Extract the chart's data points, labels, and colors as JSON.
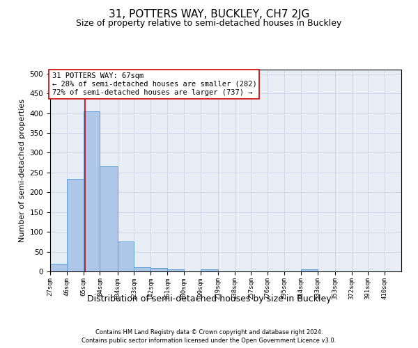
{
  "title": "31, POTTERS WAY, BUCKLEY, CH7 2JG",
  "subtitle": "Size of property relative to semi-detached houses in Buckley",
  "xlabel": "Distribution of semi-detached houses by size in Buckley",
  "ylabel": "Number of semi-detached properties",
  "footer1": "Contains HM Land Registry data © Crown copyright and database right 2024.",
  "footer2": "Contains public sector information licensed under the Open Government Licence v3.0.",
  "bar_left_edges": [
    27,
    46,
    65,
    84,
    104,
    123,
    142,
    161,
    180,
    199,
    219,
    238,
    257,
    276,
    295,
    314,
    333,
    353,
    372,
    391
  ],
  "bar_heights": [
    19,
    234,
    405,
    265,
    76,
    11,
    8,
    5,
    0,
    5,
    0,
    0,
    0,
    0,
    0,
    5,
    0,
    0,
    0,
    0
  ],
  "bar_widths": [
    19,
    19,
    19,
    20,
    19,
    19,
    19,
    19,
    19,
    20,
    19,
    19,
    19,
    19,
    19,
    19,
    20,
    19,
    19,
    19
  ],
  "tick_labels": [
    "27sqm",
    "46sqm",
    "65sqm",
    "84sqm",
    "104sqm",
    "123sqm",
    "142sqm",
    "161sqm",
    "180sqm",
    "199sqm",
    "219sqm",
    "238sqm",
    "257sqm",
    "276sqm",
    "295sqm",
    "314sqm",
    "333sqm",
    "353sqm",
    "372sqm",
    "391sqm",
    "410sqm"
  ],
  "bar_color": "#aec6e8",
  "bar_edge_color": "#5a9fd4",
  "property_line_x": 67,
  "property_line_color": "#cc0000",
  "annotation_text": "31 POTTERS WAY: 67sqm\n← 28% of semi-detached houses are smaller (282)\n72% of semi-detached houses are larger (737) →",
  "annotation_box_color": "#ffffff",
  "annotation_box_edge_color": "#cc0000",
  "ylim": [
    0,
    510
  ],
  "xlim": [
    27,
    429
  ],
  "grid_color": "#d0d8e8",
  "background_color": "#e8eef5",
  "title_fontsize": 11,
  "subtitle_fontsize": 9,
  "ylabel_fontsize": 8,
  "xlabel_fontsize": 9,
  "annotation_fontsize": 7.5
}
